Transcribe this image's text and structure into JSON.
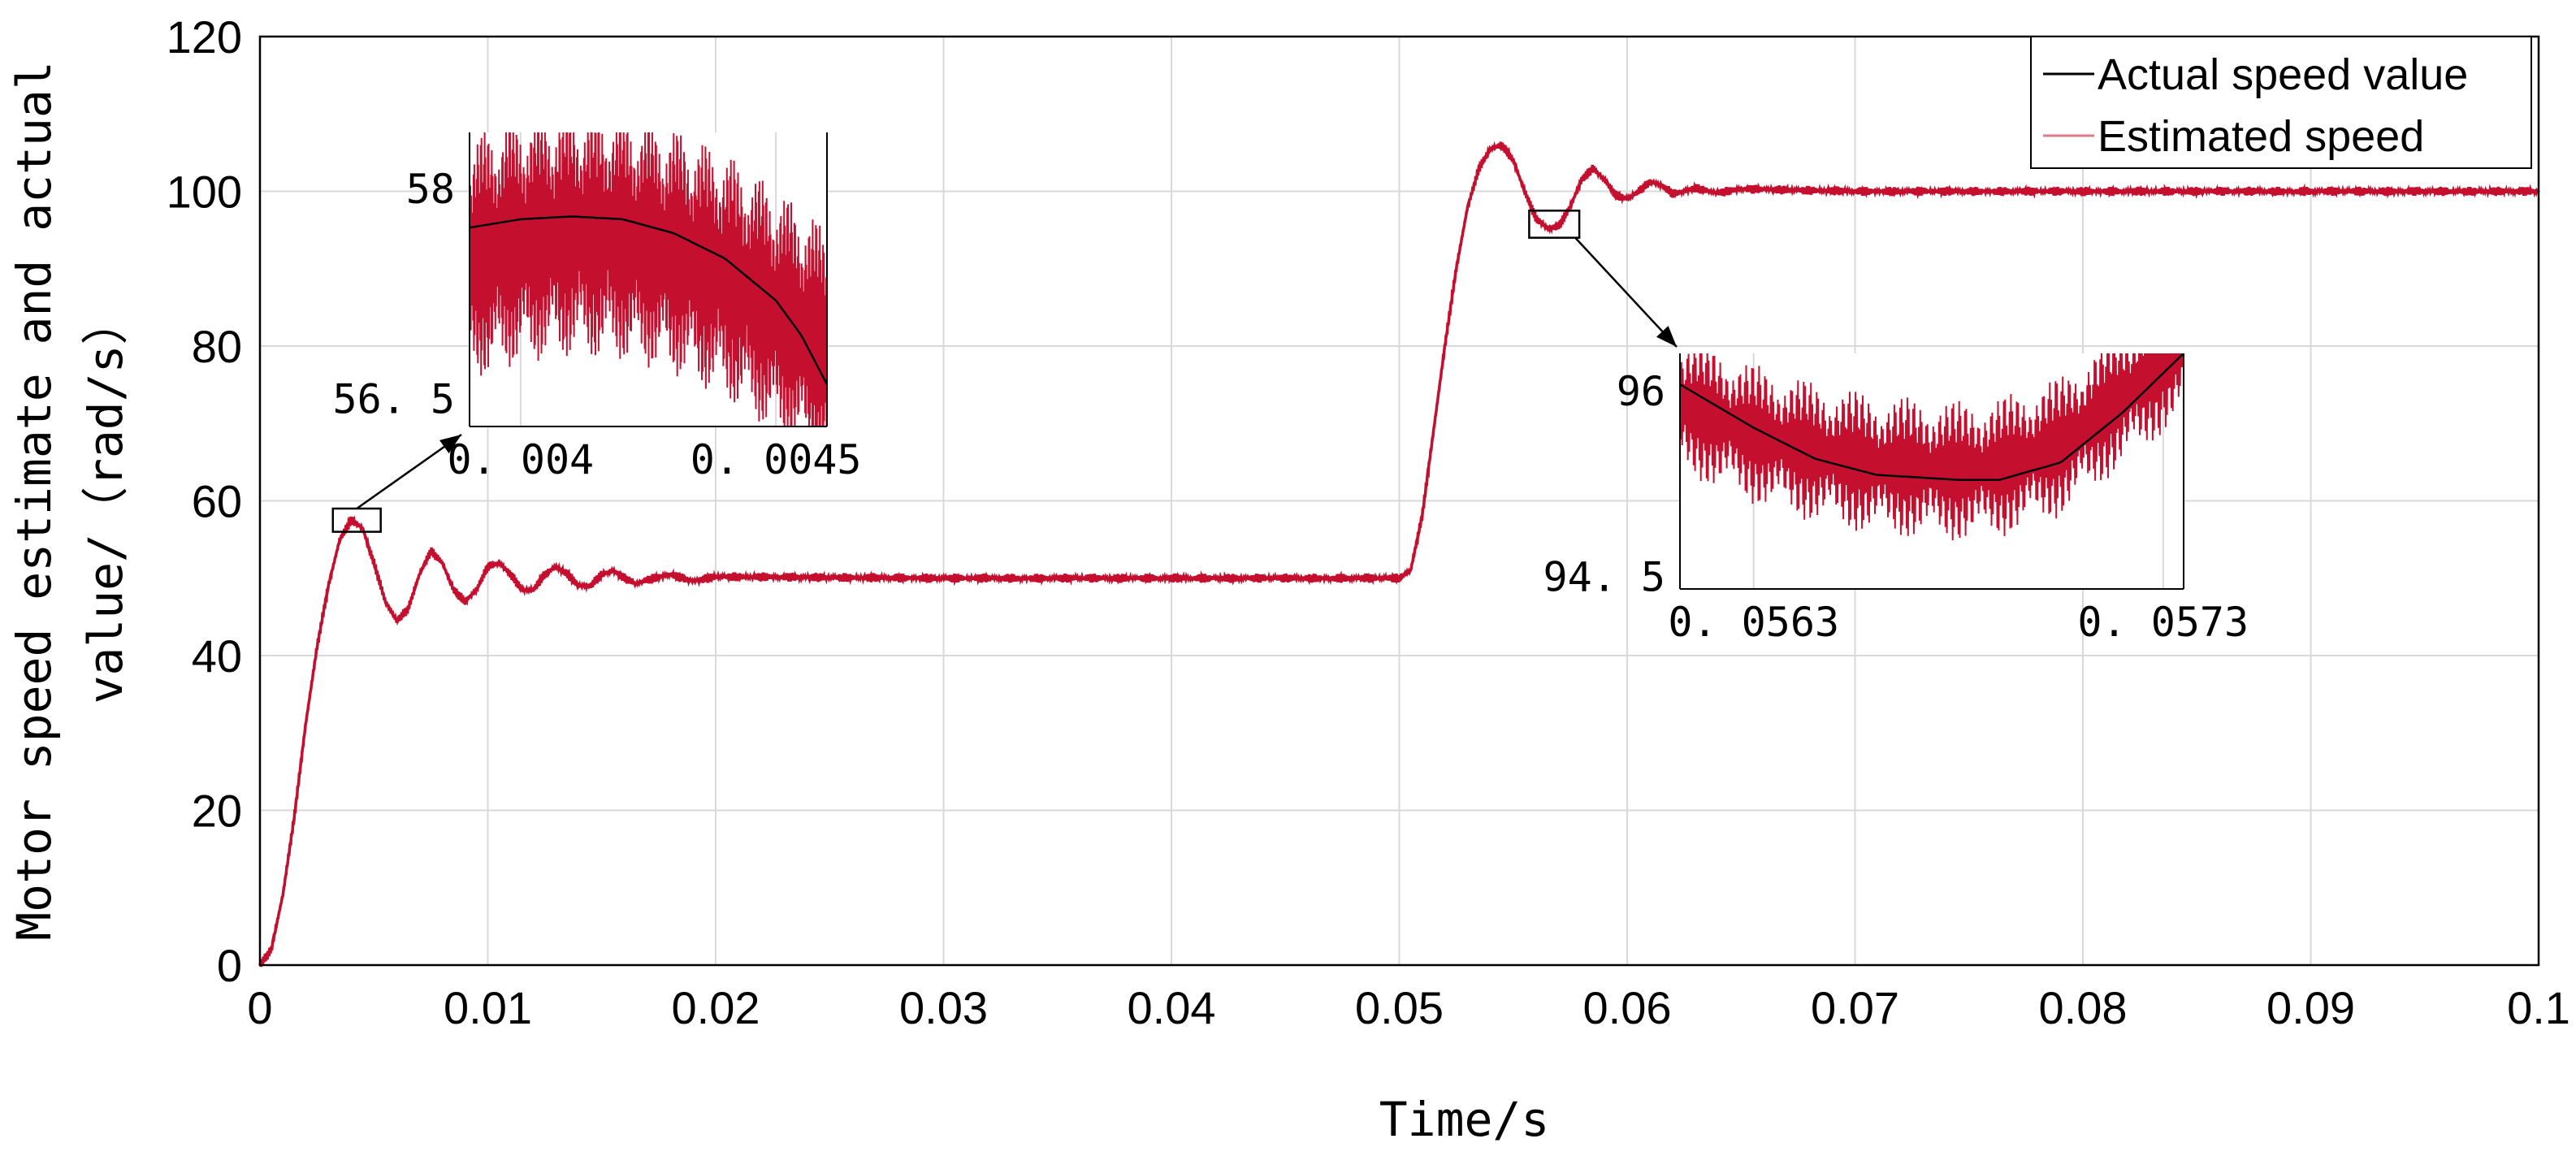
{
  "chart_data": {
    "type": "line",
    "xlabel": "Time/s",
    "ylabel_lines": [
      "Motor speed estimate and actual",
      "value/（rad/s）"
    ],
    "xlim": [
      0,
      0.1
    ],
    "ylim": [
      0,
      120
    ],
    "x_ticks": [
      {
        "value": 0,
        "label": "0"
      },
      {
        "value": 0.01,
        "label": "0.01"
      },
      {
        "value": 0.02,
        "label": "0.02"
      },
      {
        "value": 0.03,
        "label": "0.03"
      },
      {
        "value": 0.04,
        "label": "0.04"
      },
      {
        "value": 0.05,
        "label": "0.05"
      },
      {
        "value": 0.06,
        "label": "0.06"
      },
      {
        "value": 0.07,
        "label": "0.07"
      },
      {
        "value": 0.08,
        "label": "0.08"
      },
      {
        "value": 0.09,
        "label": "0.09"
      },
      {
        "value": 0.1,
        "label": "0.1"
      }
    ],
    "y_ticks": [
      {
        "value": 0,
        "label": "0"
      },
      {
        "value": 20,
        "label": "20"
      },
      {
        "value": 40,
        "label": "40"
      },
      {
        "value": 60,
        "label": "60"
      },
      {
        "value": 80,
        "label": "80"
      },
      {
        "value": 100,
        "label": "100"
      },
      {
        "value": 120,
        "label": "120"
      }
    ],
    "grid": true,
    "legend_position": "top-right",
    "series": [
      {
        "name": "Actual speed value",
        "color": "#000000",
        "points": [
          [
            0,
            0
          ],
          [
            0.0005,
            2
          ],
          [
            0.001,
            9
          ],
          [
            0.0015,
            19
          ],
          [
            0.002,
            31
          ],
          [
            0.0025,
            41
          ],
          [
            0.003,
            49
          ],
          [
            0.0035,
            55
          ],
          [
            0.004,
            57.5
          ],
          [
            0.0045,
            56.5
          ],
          [
            0.005,
            52
          ],
          [
            0.0055,
            47
          ],
          [
            0.006,
            44.5
          ],
          [
            0.0065,
            46
          ],
          [
            0.007,
            50.5
          ],
          [
            0.0075,
            53.5
          ],
          [
            0.008,
            52
          ],
          [
            0.0085,
            48.5
          ],
          [
            0.009,
            47
          ],
          [
            0.0095,
            48.5
          ],
          [
            0.01,
            51.5
          ],
          [
            0.0105,
            52
          ],
          [
            0.011,
            50.5
          ],
          [
            0.0115,
            48.5
          ],
          [
            0.012,
            48.5
          ],
          [
            0.0125,
            50.5
          ],
          [
            0.013,
            51.5
          ],
          [
            0.0135,
            50.5
          ],
          [
            0.014,
            49
          ],
          [
            0.0145,
            49
          ],
          [
            0.015,
            50.5
          ],
          [
            0.0155,
            51
          ],
          [
            0.016,
            50
          ],
          [
            0.0165,
            49.3
          ],
          [
            0.017,
            49.8
          ],
          [
            0.018,
            50.5
          ],
          [
            0.019,
            49.6
          ],
          [
            0.02,
            50.2
          ],
          [
            0.03,
            50
          ],
          [
            0.04,
            50
          ],
          [
            0.05,
            50
          ],
          [
            0.0505,
            51
          ],
          [
            0.051,
            58
          ],
          [
            0.0515,
            69
          ],
          [
            0.052,
            80
          ],
          [
            0.0525,
            90
          ],
          [
            0.053,
            98
          ],
          [
            0.0535,
            103
          ],
          [
            0.054,
            105.5
          ],
          [
            0.0545,
            106
          ],
          [
            0.055,
            104
          ],
          [
            0.0555,
            100
          ],
          [
            0.056,
            96.5
          ],
          [
            0.0565,
            95.2
          ],
          [
            0.057,
            95.5
          ],
          [
            0.0575,
            98
          ],
          [
            0.058,
            101.5
          ],
          [
            0.0585,
            103
          ],
          [
            0.059,
            101.5
          ],
          [
            0.0595,
            99.5
          ],
          [
            0.06,
            99
          ],
          [
            0.0605,
            100
          ],
          [
            0.061,
            101.2
          ],
          [
            0.0615,
            100.8
          ],
          [
            0.062,
            99.7
          ],
          [
            0.063,
            100.4
          ],
          [
            0.064,
            99.8
          ],
          [
            0.065,
            100.3
          ],
          [
            0.07,
            100
          ],
          [
            0.08,
            100
          ],
          [
            0.09,
            100
          ],
          [
            0.1,
            100
          ]
        ]
      },
      {
        "name": "Estimated speed",
        "color": "#c4102e",
        "points": [
          [
            0,
            0
          ],
          [
            0.0005,
            2
          ],
          [
            0.001,
            9
          ],
          [
            0.0015,
            19
          ],
          [
            0.002,
            31
          ],
          [
            0.0025,
            41
          ],
          [
            0.003,
            49
          ],
          [
            0.0035,
            55
          ],
          [
            0.004,
            57.5
          ],
          [
            0.0045,
            56.5
          ],
          [
            0.005,
            52
          ],
          [
            0.0055,
            47
          ],
          [
            0.006,
            44.5
          ],
          [
            0.0065,
            46
          ],
          [
            0.007,
            50.5
          ],
          [
            0.0075,
            53.5
          ],
          [
            0.008,
            52
          ],
          [
            0.0085,
            48.5
          ],
          [
            0.009,
            47
          ],
          [
            0.0095,
            48.5
          ],
          [
            0.01,
            51.5
          ],
          [
            0.0105,
            52
          ],
          [
            0.011,
            50.5
          ],
          [
            0.0115,
            48.5
          ],
          [
            0.012,
            48.5
          ],
          [
            0.0125,
            50.5
          ],
          [
            0.013,
            51.5
          ],
          [
            0.0135,
            50.5
          ],
          [
            0.014,
            49
          ],
          [
            0.0145,
            49
          ],
          [
            0.015,
            50.5
          ],
          [
            0.0155,
            51
          ],
          [
            0.016,
            50
          ],
          [
            0.0165,
            49.3
          ],
          [
            0.017,
            49.8
          ],
          [
            0.018,
            50.5
          ],
          [
            0.019,
            49.6
          ],
          [
            0.02,
            50.2
          ],
          [
            0.03,
            50
          ],
          [
            0.04,
            50
          ],
          [
            0.05,
            50
          ],
          [
            0.0505,
            51
          ],
          [
            0.051,
            58
          ],
          [
            0.0515,
            69
          ],
          [
            0.052,
            80
          ],
          [
            0.0525,
            90
          ],
          [
            0.053,
            98
          ],
          [
            0.0535,
            103
          ],
          [
            0.054,
            105.5
          ],
          [
            0.0545,
            106
          ],
          [
            0.055,
            104
          ],
          [
            0.0555,
            100
          ],
          [
            0.056,
            96.5
          ],
          [
            0.0565,
            95.2
          ],
          [
            0.057,
            95.5
          ],
          [
            0.0575,
            98
          ],
          [
            0.058,
            101.5
          ],
          [
            0.0585,
            103
          ],
          [
            0.059,
            101.5
          ],
          [
            0.0595,
            99.5
          ],
          [
            0.06,
            99
          ],
          [
            0.0605,
            100
          ],
          [
            0.061,
            101.2
          ],
          [
            0.0615,
            100.8
          ],
          [
            0.062,
            99.7
          ],
          [
            0.063,
            100.4
          ],
          [
            0.064,
            99.8
          ],
          [
            0.065,
            100.3
          ],
          [
            0.07,
            100
          ],
          [
            0.08,
            100
          ],
          [
            0.09,
            100
          ],
          [
            0.1,
            100
          ]
        ],
        "ripple_amplitude": 0.6
      }
    ],
    "insets": [
      {
        "name": "zoom-peak-1",
        "xlim": [
          0.0039,
          0.0046
        ],
        "ylim": [
          56.3,
          58.4
        ],
        "x_ticks": [
          {
            "value": 0.004,
            "label": "0. 004"
          },
          {
            "value": 0.0045,
            "label": "0. 0045"
          }
        ],
        "y_ticks": [
          {
            "value": 58,
            "label": "58"
          },
          {
            "value": 56.5,
            "label": "56. 5"
          }
        ],
        "source_box": {
          "x": [
            0.0032,
            0.0053
          ],
          "y": [
            56,
            59
          ]
        },
        "actual_points": [
          [
            0.0039,
            57.72
          ],
          [
            0.004,
            57.78
          ],
          [
            0.0041,
            57.8
          ],
          [
            0.0042,
            57.78
          ],
          [
            0.0043,
            57.68
          ],
          [
            0.0044,
            57.5
          ],
          [
            0.0045,
            57.2
          ],
          [
            0.00455,
            56.95
          ],
          [
            0.0046,
            56.6
          ]
        ],
        "estimated_center": [
          [
            0.0039,
            57.5
          ],
          [
            0.004,
            57.63
          ],
          [
            0.0041,
            57.68
          ],
          [
            0.0042,
            57.65
          ],
          [
            0.0043,
            57.55
          ],
          [
            0.0044,
            57.38
          ],
          [
            0.0045,
            57.12
          ],
          [
            0.0046,
            56.85
          ]
        ],
        "ripple_amplitude": 0.6
      },
      {
        "name": "zoom-trough-2",
        "xlim": [
          0.05612,
          0.05735
        ],
        "ylim": [
          94.4,
          96.3
        ],
        "x_ticks": [
          {
            "value": 0.0563,
            "label": "0. 0563"
          },
          {
            "value": 0.0573,
            "label": "0. 0573"
          }
        ],
        "y_ticks": [
          {
            "value": 96,
            "label": "96"
          },
          {
            "value": 94.5,
            "label": "94. 5"
          }
        ],
        "source_box": {
          "x": [
            0.0557,
            0.0579
          ],
          "y": [
            94,
            97.5
          ]
        },
        "actual_points": [
          [
            0.05612,
            96.05
          ],
          [
            0.0563,
            95.7
          ],
          [
            0.05645,
            95.45
          ],
          [
            0.0566,
            95.32
          ],
          [
            0.0568,
            95.28
          ],
          [
            0.0569,
            95.28
          ],
          [
            0.05705,
            95.42
          ],
          [
            0.0572,
            95.82
          ],
          [
            0.05735,
            96.3
          ]
        ],
        "estimated_center": [
          [
            0.05612,
            95.9
          ],
          [
            0.0563,
            95.65
          ],
          [
            0.05645,
            95.5
          ],
          [
            0.0566,
            95.4
          ],
          [
            0.0568,
            95.35
          ],
          [
            0.0569,
            95.38
          ],
          [
            0.05705,
            95.55
          ],
          [
            0.0572,
            95.95
          ],
          [
            0.05735,
            96.35
          ]
        ],
        "ripple_amplitude": 0.3
      }
    ]
  }
}
